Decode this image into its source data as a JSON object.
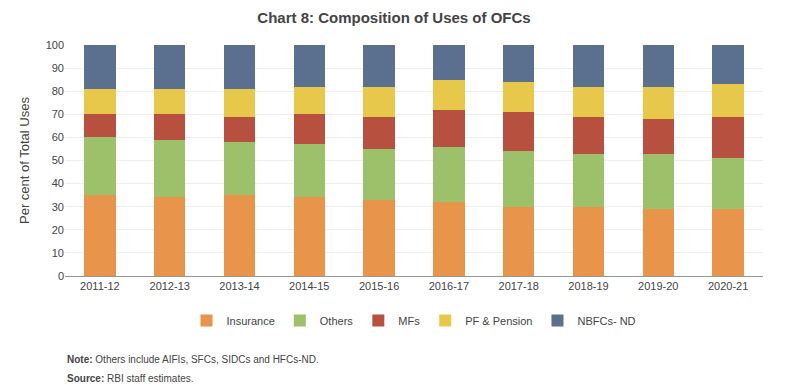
{
  "chart_data": {
    "type": "bar",
    "stacked": true,
    "title": "Chart 8: Composition of Uses of OFCs",
    "ylabel": "Per cent of Total Uses",
    "categories": [
      "2011-12",
      "2012-13",
      "2013-14",
      "2014-15",
      "2015-16",
      "2016-17",
      "2017-18",
      "2018-19",
      "2019-20",
      "2020-21"
    ],
    "series": [
      {
        "name": "Insurance",
        "color": "#E8944A",
        "values": [
          35,
          34,
          35,
          34,
          33,
          32,
          30,
          30,
          29,
          29
        ]
      },
      {
        "name": "Others",
        "color": "#9DC16A",
        "values": [
          25,
          25,
          23,
          23,
          22,
          24,
          24,
          23,
          24,
          22
        ]
      },
      {
        "name": "MFs",
        "color": "#B85040",
        "values": [
          10,
          11,
          11,
          13,
          14,
          16,
          17,
          16,
          15,
          18
        ]
      },
      {
        "name": "PF & Pension",
        "color": "#E8C84A",
        "values": [
          11,
          11,
          12,
          12,
          13,
          13,
          13,
          13,
          14,
          14
        ]
      },
      {
        "name": "NBFCs- ND",
        "color": "#5B6F8E",
        "values": [
          19,
          19,
          19,
          18,
          18,
          15,
          16,
          18,
          18,
          17
        ]
      }
    ],
    "ylim": [
      0,
      100
    ],
    "yticks": [
      0,
      10,
      20,
      30,
      40,
      50,
      60,
      70,
      80,
      90,
      100
    ],
    "grid": true,
    "legend": "bottom",
    "annotations": [
      "Note: Others include AIFIs, SFCs, SIDCs and HFCs-ND.",
      "Source: RBI staff estimates."
    ]
  }
}
